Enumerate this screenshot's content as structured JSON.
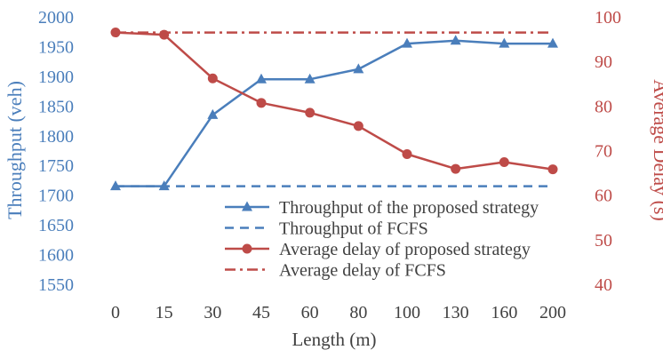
{
  "chart_data": {
    "type": "line",
    "title": "",
    "xlabel": "Length (m)",
    "ylabel_left": "Throughput (veh)",
    "ylabel_right": "Average Delay (s)",
    "categories": [
      "0",
      "15",
      "30",
      "45",
      "60",
      "80",
      "100",
      "130",
      "160",
      "200"
    ],
    "ylim_left": [
      1550,
      2000
    ],
    "yticks_left": [
      1550,
      1600,
      1650,
      1700,
      1750,
      1800,
      1850,
      1900,
      1950,
      2000
    ],
    "ylim_right": [
      40,
      100
    ],
    "yticks_right": [
      40,
      50,
      60,
      70,
      80,
      90,
      100
    ],
    "grid": false,
    "legend_position": "bottom-right",
    "series": [
      {
        "name": "Throughput of the proposed strategy",
        "axis": "left",
        "color": "#4a7ebb",
        "dash": "solid",
        "marker": "triangle",
        "values": [
          1715,
          1715,
          1835,
          1895,
          1895,
          1912,
          1955,
          1960,
          1955,
          1955
        ]
      },
      {
        "name": "Throughput of FCFS",
        "axis": "left",
        "color": "#4a7ebb",
        "dash": "dash",
        "marker": "none",
        "values": [
          1715,
          1715,
          1715,
          1715,
          1715,
          1715,
          1715,
          1715,
          1715,
          1715
        ]
      },
      {
        "name": "Average delay of proposed strategy",
        "axis": "right",
        "color": "#be4b48",
        "dash": "solid",
        "marker": "circle",
        "values": [
          96.5,
          96,
          86.2,
          80.7,
          78.5,
          75.5,
          69.2,
          65.9,
          67.4,
          65.8
        ]
      },
      {
        "name": "Average delay of FCFS",
        "axis": "right",
        "color": "#be4b48",
        "dash": "dashdot",
        "marker": "none",
        "values": [
          96.5,
          96.5,
          96.5,
          96.5,
          96.5,
          96.5,
          96.5,
          96.5,
          96.5,
          96.5
        ]
      }
    ]
  }
}
